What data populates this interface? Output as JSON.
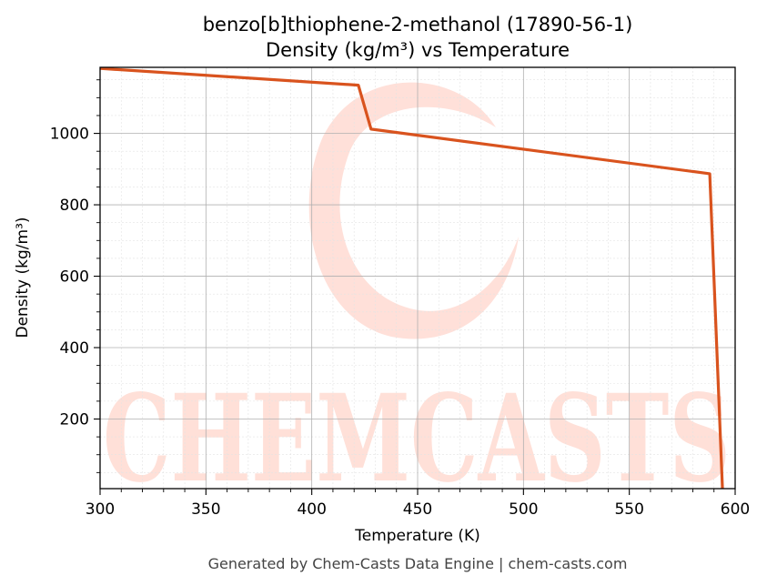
{
  "chart_data": {
    "type": "line",
    "title": "benzo[b]thiophene-2-methanol (17890-56-1)",
    "subtitle": "Density (kg/m³) vs Temperature",
    "xlabel": "Temperature (K)",
    "ylabel": "Density (kg/m³)",
    "xlim": [
      300,
      600
    ],
    "ylim": [
      5,
      1185
    ],
    "x_ticks": [
      300,
      350,
      400,
      450,
      500,
      550,
      600
    ],
    "y_ticks": [
      200,
      400,
      600,
      800,
      1000
    ],
    "grid": true,
    "line_color": "#d9531e",
    "series": [
      {
        "x": [
          300,
          422,
          428,
          588,
          594
        ],
        "y": [
          1182,
          1135,
          1012,
          887,
          5
        ]
      }
    ]
  },
  "watermark": {
    "text": "CHEMCASTS",
    "color": "#ffd6cc"
  },
  "footer": "Generated by Chem-Casts Data Engine | chem-casts.com"
}
